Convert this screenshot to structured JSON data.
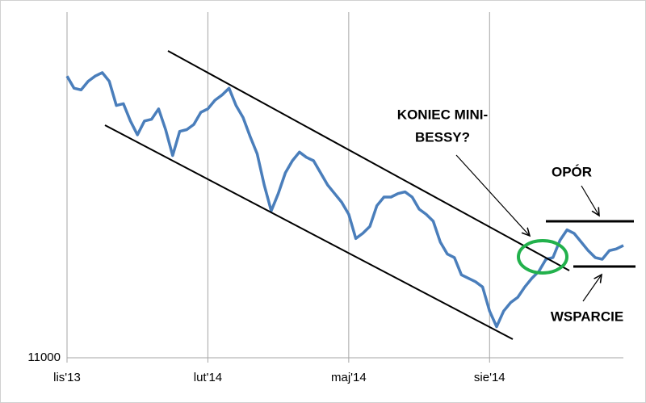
{
  "chart_data": {
    "type": "line",
    "categories": [
      "lis'13",
      null,
      null,
      null,
      null,
      null,
      null,
      null,
      null,
      null,
      null,
      null,
      null,
      null,
      null,
      null,
      null,
      null,
      null,
      null,
      "lut'14",
      null,
      null,
      null,
      null,
      null,
      null,
      null,
      null,
      null,
      null,
      null,
      null,
      null,
      null,
      null,
      null,
      null,
      null,
      null,
      "maj'14",
      null,
      null,
      null,
      null,
      null,
      null,
      null,
      null,
      null,
      null,
      null,
      null,
      null,
      null,
      null,
      null,
      null,
      null,
      null,
      "sie'14",
      null,
      null,
      null,
      null,
      null,
      null,
      null,
      null,
      null,
      null,
      null,
      null,
      null,
      null,
      null,
      null,
      null,
      null,
      null
    ],
    "series": [
      {
        "color": "#4a7ebb",
        "values": [
          12630,
          12560,
          12550,
          12600,
          12630,
          12650,
          12600,
          12460,
          12470,
          12370,
          12290,
          12370,
          12380,
          12440,
          12320,
          12170,
          12310,
          12320,
          12350,
          12420,
          12440,
          12490,
          12520,
          12560,
          12460,
          12390,
          12280,
          12180,
          12000,
          11850,
          11950,
          12070,
          12140,
          12190,
          12160,
          12140,
          12070,
          12000,
          11950,
          11900,
          11830,
          11690,
          11720,
          11760,
          11880,
          11930,
          11930,
          11950,
          11960,
          11930,
          11860,
          11830,
          11790,
          11670,
          11600,
          11580,
          11480,
          11460,
          11440,
          11410,
          11270,
          11180,
          11270,
          11320,
          11350,
          11410,
          11460,
          11500,
          11570,
          11580,
          11680,
          11740,
          11720,
          11670,
          11620,
          11580,
          11570,
          11620,
          11630,
          11650
        ]
      }
    ],
    "ylim": [
      11000,
      13000
    ],
    "yticks": [
      11000
    ],
    "grid": true,
    "annotations": [
      "KONIEC MINI-",
      "BESSY?",
      "OPÓR",
      "WSPARCIE"
    ]
  }
}
